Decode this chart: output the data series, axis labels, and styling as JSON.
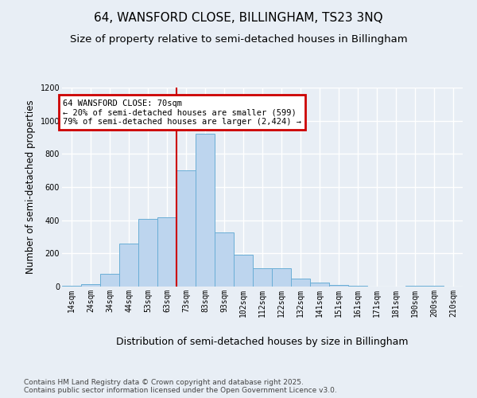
{
  "title": "64, WANSFORD CLOSE, BILLINGHAM, TS23 3NQ",
  "subtitle": "Size of property relative to semi-detached houses in Billingham",
  "xlabel": "Distribution of semi-detached houses by size in Billingham",
  "ylabel": "Number of semi-detached properties",
  "categories": [
    "14sqm",
    "24sqm",
    "34sqm",
    "44sqm",
    "53sqm",
    "63sqm",
    "73sqm",
    "83sqm",
    "93sqm",
    "102sqm",
    "112sqm",
    "122sqm",
    "132sqm",
    "141sqm",
    "151sqm",
    "161sqm",
    "171sqm",
    "181sqm",
    "190sqm",
    "200sqm",
    "210sqm"
  ],
  "values": [
    5,
    15,
    75,
    260,
    410,
    420,
    700,
    920,
    325,
    190,
    110,
    110,
    50,
    25,
    10,
    5,
    0,
    0,
    5,
    5,
    0
  ],
  "bar_color": "#bdd5ee",
  "bar_edge_color": "#6aaed6",
  "vline_color": "#cc0000",
  "vline_x_index": 6,
  "ylim": [
    0,
    1200
  ],
  "yticks": [
    0,
    200,
    400,
    600,
    800,
    1000,
    1200
  ],
  "annotation_text": "64 WANSFORD CLOSE: 70sqm\n← 20% of semi-detached houses are smaller (599)\n79% of semi-detached houses are larger (2,424) →",
  "annotation_border_color": "#cc0000",
  "footer_text": "Contains HM Land Registry data © Crown copyright and database right 2025.\nContains public sector information licensed under the Open Government Licence v3.0.",
  "bg_color": "#e8eef5",
  "plot_bg_color": "#e8eef5",
  "grid_color": "#ffffff",
  "title_fontsize": 11,
  "subtitle_fontsize": 9.5,
  "ylabel_fontsize": 8.5,
  "xlabel_fontsize": 9,
  "tick_fontsize": 7,
  "footer_fontsize": 6.5,
  "annot_fontsize": 7.5
}
